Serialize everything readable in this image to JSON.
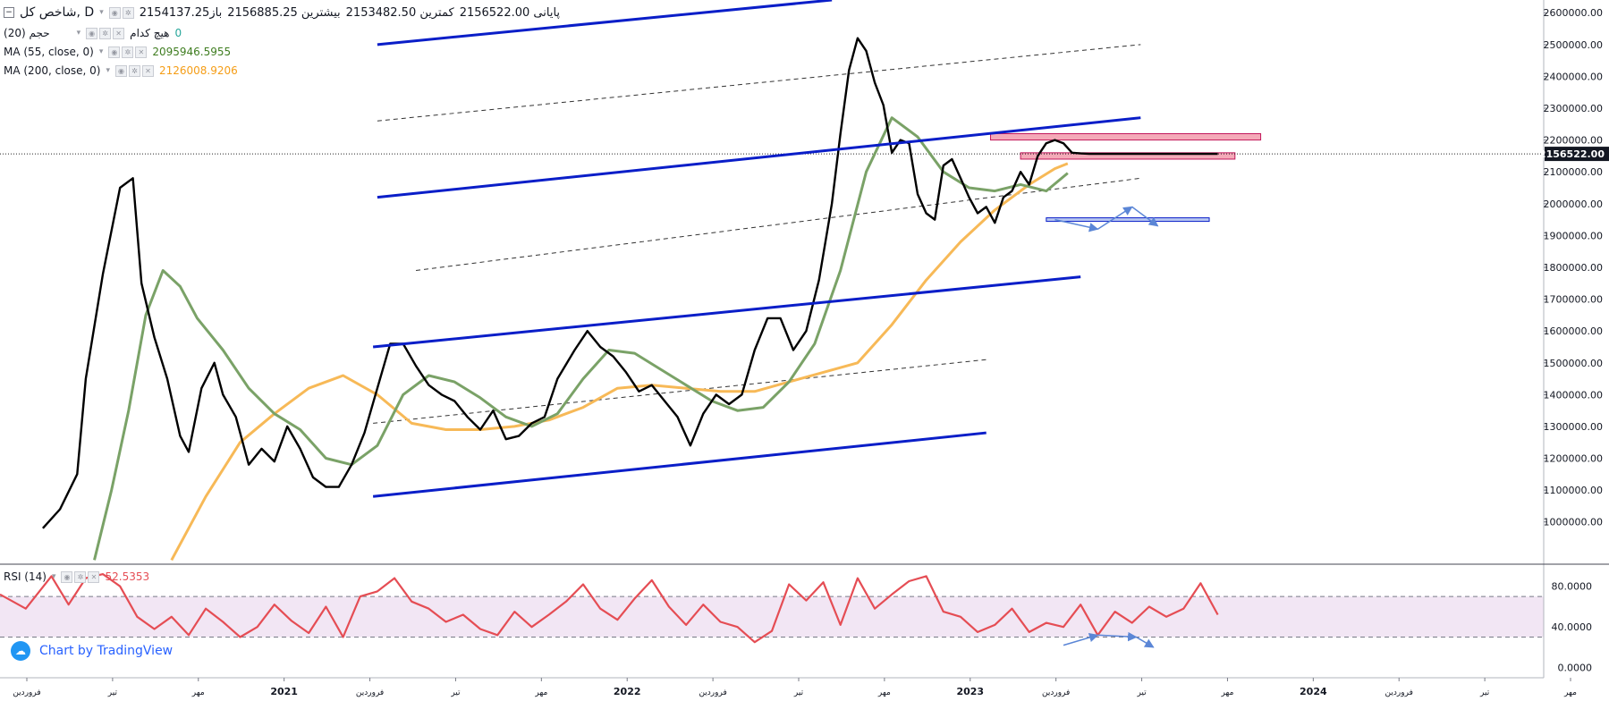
{
  "header": {
    "symbol": "شاخص کل, D",
    "open_label": "باز",
    "open_value": "2154137.25",
    "high_label": "بیشترین",
    "high_value": "2156885.25",
    "low_label": "کمترین",
    "low_value": "2153482.50",
    "close_label": "پایانی",
    "close_value": "2156522.00"
  },
  "legend": {
    "volume": "حجم (20)",
    "volume_none": "هیچ کدام",
    "volume_value": "0",
    "ma55": "MA (55, close, 0)",
    "ma55_value": "2095946.5955",
    "ma200": "MA (200, close, 0)",
    "ma200_value": "2126008.9206",
    "rsi": "RSI (14)",
    "rsi_value": "52.5353"
  },
  "branding": {
    "text": "Chart by TradingView"
  },
  "colors": {
    "price": "#000000",
    "ma55": "#7aa267",
    "ma200": "#f7b957",
    "channel": "#0a1ec8",
    "rsi": "#e54d54",
    "rsi_band": "#f2e6f4",
    "zone": "#f4a9b8",
    "arrow": "#5b86d6"
  },
  "chart_data": [
    {
      "type": "line",
      "panel": "price",
      "y_axis_ticks": [
        "2600000.00",
        "2500000.00",
        "2400000.00",
        "2300000.00",
        "2200000.00",
        "2100000.00",
        "2000000.00",
        "1900000.00",
        "1800000.00",
        "1700000.00",
        "1600000.00",
        "1500000.00",
        "1400000.00",
        "1300000.00",
        "1200000.00",
        "1100000.00",
        "1000000.00"
      ],
      "ylim": [
        870000,
        2640000
      ],
      "last_price_label": "2156522.00",
      "last_price": 2156522,
      "x_axis_ticks": [
        "فروردین",
        "تیر",
        "مهر",
        "2021",
        "فروردین",
        "تیر",
        "مهر",
        "2022",
        "فروردین",
        "تیر",
        "مهر",
        "2023",
        "فروردین",
        "تیر",
        "مهر",
        "2024",
        "فروردین",
        "تیر",
        "مهر"
      ],
      "x_ticks_bold": [
        "2021",
        "2022",
        "2023",
        "2024"
      ],
      "xlim": [
        0,
        18
      ],
      "series": [
        {
          "key": "price",
          "x": [
            0.5,
            0.7,
            0.9,
            1.0,
            1.2,
            1.4,
            1.55,
            1.65,
            1.8,
            1.95,
            2.1,
            2.2,
            2.35,
            2.5,
            2.6,
            2.75,
            2.9,
            3.05,
            3.2,
            3.35,
            3.5,
            3.65,
            3.8,
            3.95,
            4.1,
            4.25,
            4.4,
            4.55,
            4.7,
            4.85,
            5.0,
            5.15,
            5.3,
            5.45,
            5.6,
            5.75,
            5.9,
            6.05,
            6.2,
            6.35,
            6.5,
            6.7,
            6.85,
            7.0,
            7.15,
            7.3,
            7.45,
            7.6,
            7.75,
            7.9,
            8.05,
            8.2,
            8.35,
            8.5,
            8.65,
            8.8,
            8.95,
            9.1,
            9.25,
            9.4,
            9.55,
            9.7,
            9.8,
            9.9,
            10.0,
            10.1,
            10.2,
            10.3,
            10.4,
            10.5,
            10.6,
            10.7,
            10.8,
            10.9,
            11.0,
            11.1,
            11.2,
            11.3,
            11.4,
            11.5,
            11.6,
            11.7,
            11.8,
            11.9,
            12.0,
            12.1,
            12.2,
            12.3,
            12.4,
            12.5,
            12.6,
            12.7,
            12.8,
            12.9,
            13.0,
            13.1,
            13.2,
            13.3,
            13.4,
            13.5,
            13.6,
            13.7,
            13.8,
            13.9,
            14.0,
            14.1,
            14.2
          ],
          "values": [
            980000,
            1040000,
            1150000,
            1450000,
            1780000,
            2050000,
            2080000,
            1750000,
            1580000,
            1450000,
            1270000,
            1220000,
            1420000,
            1500000,
            1400000,
            1330000,
            1180000,
            1230000,
            1190000,
            1300000,
            1230000,
            1140000,
            1110000,
            1110000,
            1180000,
            1280000,
            1420000,
            1560000,
            1560000,
            1490000,
            1430000,
            1400000,
            1380000,
            1330000,
            1290000,
            1350000,
            1260000,
            1270000,
            1310000,
            1330000,
            1450000,
            1540000,
            1600000,
            1550000,
            1520000,
            1470000,
            1410000,
            1430000,
            1380000,
            1330000,
            1240000,
            1340000,
            1400000,
            1370000,
            1400000,
            1540000,
            1640000,
            1640000,
            1540000,
            1600000,
            1760000,
            2000000,
            2220000,
            2420000,
            2520000,
            2480000,
            2380000,
            2310000,
            2160000,
            2200000,
            2190000,
            2030000,
            1970000,
            1950000,
            2120000,
            2140000,
            2080000,
            2020000,
            1970000,
            1990000,
            1940000,
            2020000,
            2040000,
            2100000,
            2060000,
            2150000,
            2190000,
            2200000,
            2190000,
            2160000,
            2158000,
            2156522,
            2156522,
            2156522,
            2156522,
            2156522,
            2156522,
            2156522,
            2156522,
            2156522,
            2156522,
            2156522,
            2156522,
            2156522,
            2156522,
            2156522,
            2156522
          ]
        },
        {
          "key": "ma55",
          "name": "MA (55, close, 0)",
          "x": [
            1.1,
            1.3,
            1.5,
            1.7,
            1.9,
            2.1,
            2.3,
            2.6,
            2.9,
            3.2,
            3.5,
            3.8,
            4.1,
            4.4,
            4.7,
            5.0,
            5.3,
            5.6,
            5.9,
            6.2,
            6.5,
            6.8,
            7.1,
            7.4,
            7.7,
            8.0,
            8.3,
            8.6,
            8.9,
            9.2,
            9.5,
            9.8,
            10.1,
            10.4,
            10.7,
            11.0,
            11.3,
            11.6,
            11.9,
            12.2,
            12.45
          ],
          "values": [
            880000,
            1100000,
            1350000,
            1650000,
            1790000,
            1740000,
            1640000,
            1540000,
            1420000,
            1340000,
            1290000,
            1200000,
            1180000,
            1240000,
            1400000,
            1460000,
            1440000,
            1390000,
            1330000,
            1300000,
            1340000,
            1450000,
            1540000,
            1530000,
            1480000,
            1430000,
            1380000,
            1350000,
            1360000,
            1440000,
            1560000,
            1790000,
            2100000,
            2270000,
            2210000,
            2100000,
            2050000,
            2040000,
            2060000,
            2040000,
            2095947
          ]
        },
        {
          "key": "ma200",
          "name": "MA (200, close, 0)",
          "x": [
            2.0,
            2.4,
            2.8,
            3.2,
            3.6,
            4.0,
            4.4,
            4.8,
            5.2,
            5.6,
            6.0,
            6.4,
            6.8,
            7.2,
            7.6,
            8.0,
            8.4,
            8.8,
            9.2,
            9.6,
            10.0,
            10.4,
            10.8,
            11.2,
            11.6,
            12.0,
            12.3,
            12.45
          ],
          "values": [
            880000,
            1080000,
            1250000,
            1340000,
            1420000,
            1460000,
            1400000,
            1310000,
            1290000,
            1290000,
            1300000,
            1320000,
            1360000,
            1420000,
            1430000,
            1420000,
            1410000,
            1410000,
            1440000,
            1470000,
            1500000,
            1620000,
            1760000,
            1880000,
            1980000,
            2060000,
            2110000,
            2126009
          ]
        }
      ],
      "annotations": {
        "channel_lines": [
          {
            "x": [
              4.4,
              9.7
            ],
            "y": [
              2500000,
              2640000
            ]
          },
          {
            "x": [
              4.4,
              13.3
            ],
            "y": [
              2020000,
              2270000
            ]
          },
          {
            "x": [
              4.35,
              12.6
            ],
            "y": [
              1550000,
              1770000
            ]
          },
          {
            "x": [
              4.35,
              11.5
            ],
            "y": [
              1080000,
              1280000
            ]
          }
        ],
        "dashed_lines": [
          {
            "x": [
              4.4,
              13.3
            ],
            "y": [
              2260000,
              2500000
            ]
          },
          {
            "x": [
              4.85,
              13.3
            ],
            "y": [
              1790000,
              2080000
            ]
          },
          {
            "x": [
              4.35,
              11.5
            ],
            "y": [
              1310000,
              1510000
            ]
          }
        ],
        "resistance_zones": [
          {
            "x": [
              11.55,
              14.7
            ],
            "y": [
              2200000,
              2220000
            ]
          },
          {
            "x": [
              11.9,
              14.4
            ],
            "y": [
              2140000,
              2160000
            ]
          }
        ],
        "support_line": {
          "x": [
            12.2,
            14.1
          ],
          "y": [
            1950000,
            1950000
          ]
        },
        "arrows": [
          {
            "x": [
              12.3,
              12.8
            ],
            "y": [
              1950000,
              1920000
            ]
          },
          {
            "x": [
              12.8,
              13.2
            ],
            "y": [
              1920000,
              1990000
            ]
          },
          {
            "x": [
              13.2,
              13.5
            ],
            "y": [
              1990000,
              1930000
            ]
          }
        ]
      }
    },
    {
      "type": "line",
      "panel": "rsi",
      "name": "RSI (14)",
      "y_axis_ticks": [
        "80.0000",
        "40.0000",
        "0.0000"
      ],
      "ylim": [
        -10,
        100
      ],
      "band": [
        30,
        70
      ],
      "xlim": [
        0,
        18
      ],
      "series": [
        {
          "key": "rsi",
          "x": [
            0.0,
            0.3,
            0.6,
            0.8,
            1.0,
            1.2,
            1.4,
            1.6,
            1.8,
            2.0,
            2.2,
            2.4,
            2.6,
            2.8,
            3.0,
            3.2,
            3.4,
            3.6,
            3.8,
            4.0,
            4.2,
            4.4,
            4.6,
            4.8,
            5.0,
            5.2,
            5.4,
            5.6,
            5.8,
            6.0,
            6.2,
            6.4,
            6.6,
            6.8,
            7.0,
            7.2,
            7.4,
            7.6,
            7.8,
            8.0,
            8.2,
            8.4,
            8.6,
            8.8,
            9.0,
            9.2,
            9.4,
            9.6,
            9.8,
            10.0,
            10.2,
            10.4,
            10.6,
            10.8,
            11.0,
            11.2,
            11.4,
            11.6,
            11.8,
            12.0,
            12.2,
            12.4,
            12.6,
            12.8,
            13.0,
            13.2,
            13.4,
            13.6,
            13.8,
            14.0,
            14.2
          ],
          "values": [
            72,
            58,
            90,
            62,
            88,
            92,
            80,
            50,
            38,
            50,
            32,
            58,
            45,
            30,
            40,
            62,
            46,
            34,
            60,
            30,
            70,
            75,
            88,
            65,
            58,
            45,
            52,
            38,
            32,
            55,
            40,
            52,
            65,
            82,
            58,
            47,
            68,
            86,
            60,
            42,
            62,
            45,
            40,
            25,
            36,
            82,
            66,
            84,
            42,
            88,
            58,
            72,
            85,
            90,
            55,
            50,
            35,
            42,
            58,
            35,
            44,
            40,
            62,
            32,
            55,
            44,
            60,
            50,
            58,
            83,
            52
          ]
        }
      ],
      "arrows": [
        {
          "x": [
            12.4,
            12.8
          ],
          "y": [
            22,
            32
          ]
        },
        {
          "x": [
            12.8,
            13.25
          ],
          "y": [
            32,
            30
          ]
        },
        {
          "x": [
            13.25,
            13.45
          ],
          "y": [
            30,
            20
          ]
        }
      ]
    }
  ]
}
